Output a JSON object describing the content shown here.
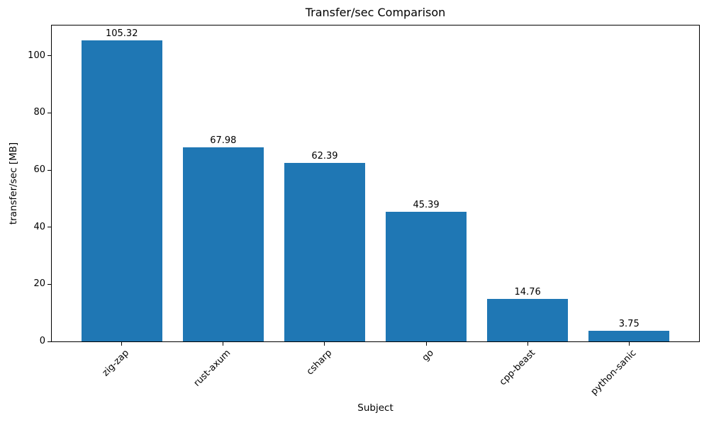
{
  "chart_data": {
    "type": "bar",
    "title": "Transfer/sec Comparison",
    "xlabel": "Subject",
    "ylabel": "transfer/sec [MB]",
    "categories": [
      "zig-zap",
      "rust-axum",
      "csharp",
      "go",
      "cpp-beast",
      "python-sanic"
    ],
    "values": [
      105.32,
      67.98,
      62.39,
      45.39,
      14.76,
      3.75
    ],
    "value_labels": [
      "105.32",
      "67.98",
      "62.39",
      "45.39",
      "14.76",
      "3.75"
    ],
    "yticks": [
      0,
      20,
      40,
      60,
      80,
      100
    ],
    "ylim": [
      0,
      110.59
    ],
    "xlim": [
      -0.69,
      5.69
    ],
    "bar_color": "#1f77b4",
    "bar_width_fraction": 0.8,
    "x_tick_rotation_deg": 45,
    "grid": false,
    "legend": null,
    "text_color": "#000000",
    "background_color": "#ffffff"
  }
}
